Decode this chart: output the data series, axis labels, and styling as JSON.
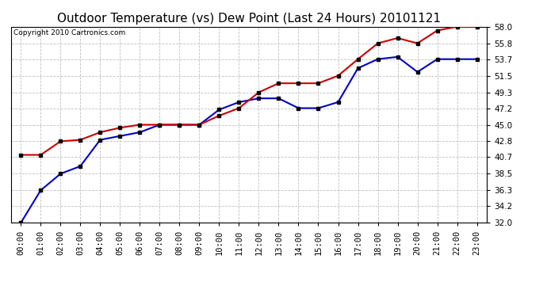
{
  "title": "Outdoor Temperature (vs) Dew Point (Last 24 Hours) 20101121",
  "copyright": "Copyright 2010 Cartronics.com",
  "hours": [
    "00:00",
    "01:00",
    "02:00",
    "03:00",
    "04:00",
    "05:00",
    "06:00",
    "07:00",
    "08:00",
    "09:00",
    "10:00",
    "11:00",
    "12:00",
    "13:00",
    "14:00",
    "15:00",
    "16:00",
    "17:00",
    "18:00",
    "19:00",
    "20:00",
    "21:00",
    "22:00",
    "23:00"
  ],
  "temp": [
    41.0,
    41.0,
    42.8,
    43.0,
    44.0,
    44.6,
    45.0,
    45.0,
    45.0,
    45.0,
    46.2,
    47.2,
    49.3,
    50.5,
    50.5,
    50.5,
    51.5,
    53.7,
    55.8,
    56.5,
    55.8,
    57.5,
    58.0,
    58.0
  ],
  "dew": [
    32.0,
    36.3,
    38.5,
    39.5,
    43.0,
    43.5,
    44.0,
    45.0,
    45.0,
    45.0,
    47.0,
    48.0,
    48.5,
    48.5,
    47.2,
    47.2,
    48.0,
    52.5,
    53.7,
    54.0,
    52.0,
    53.7,
    53.7,
    53.7
  ],
  "ylim": [
    32.0,
    58.0
  ],
  "yticks": [
    32.0,
    34.2,
    36.3,
    38.5,
    40.7,
    42.8,
    45.0,
    47.2,
    49.3,
    51.5,
    53.7,
    55.8,
    58.0
  ],
  "temp_color": "#cc0000",
  "dew_color": "#0000cc",
  "marker_color": "black",
  "bg_color": "#ffffff",
  "grid_color": "#c0c0c0",
  "title_fontsize": 11,
  "copyright_fontsize": 6.5,
  "tick_fontsize": 7.5
}
